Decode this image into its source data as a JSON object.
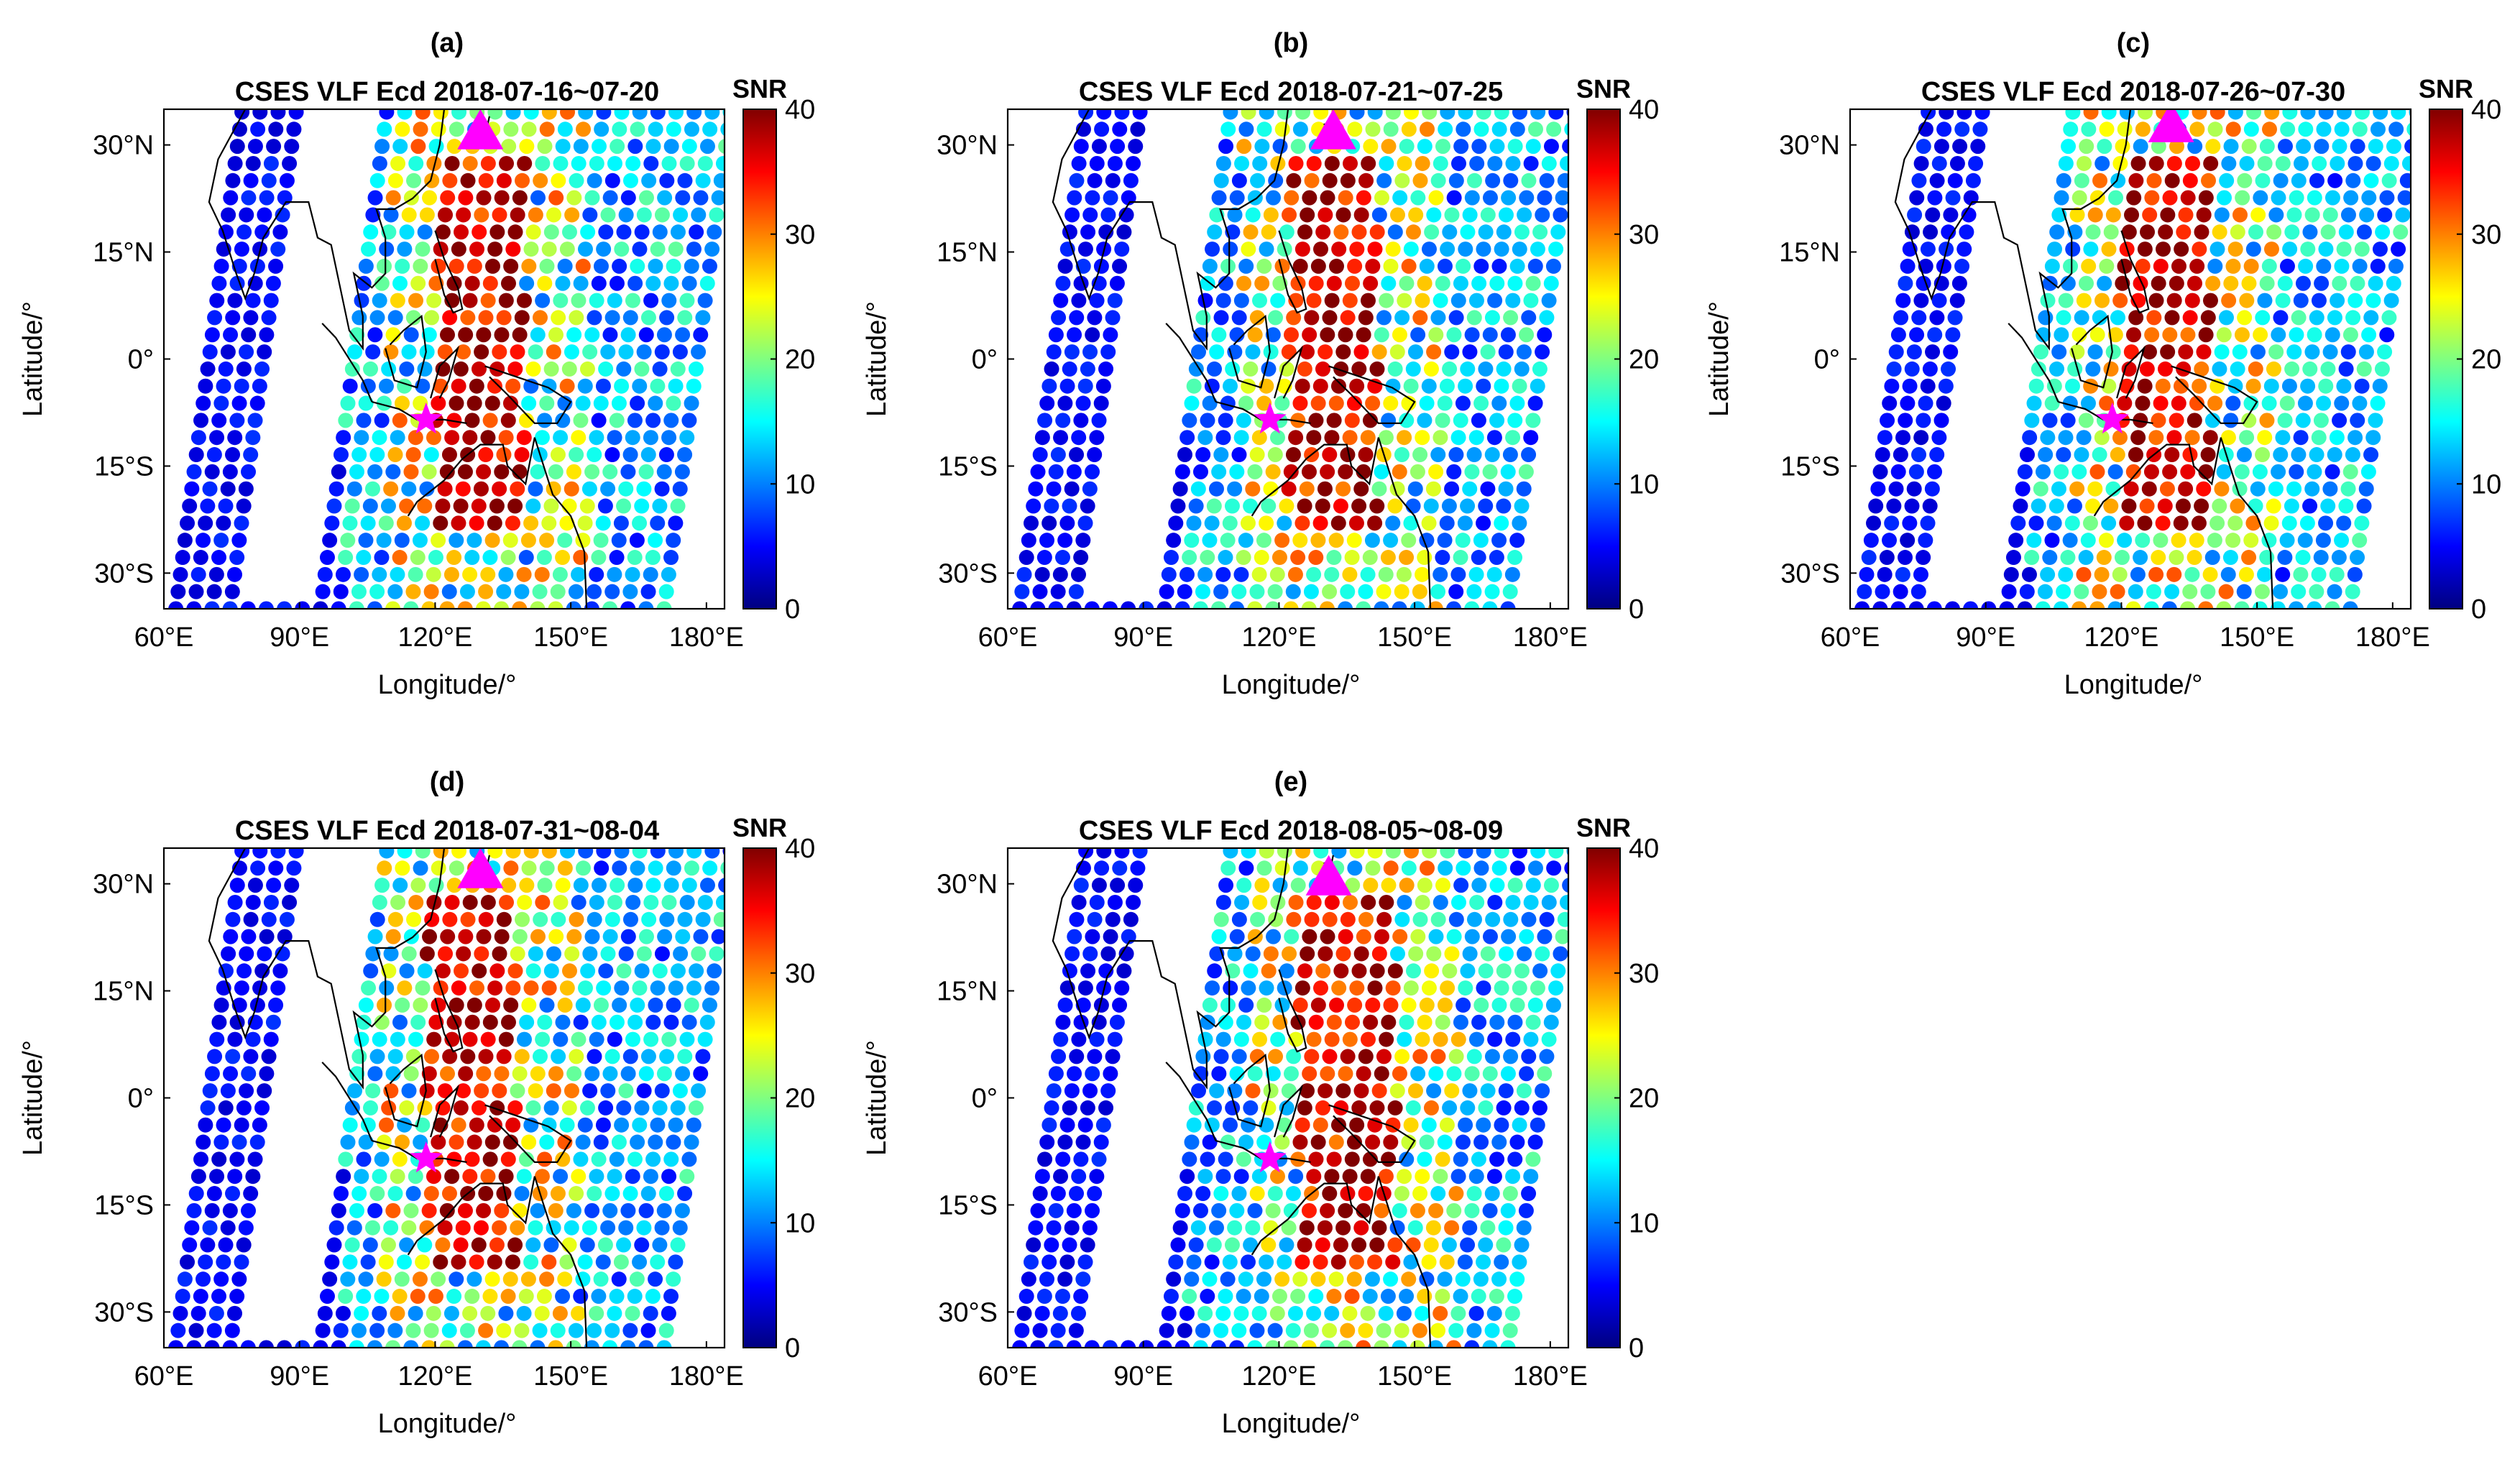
{
  "chart_data": [
    {
      "type": "scatter",
      "panel": "(a)",
      "title": "CSES VLF Ecd 2018-07-16~07-20",
      "xlabel": "Longitude/°",
      "ylabel": "Latitude/°",
      "xlim": [
        60,
        184
      ],
      "ylim": [
        -35,
        35
      ],
      "xticks": [
        "60°E",
        "90°E",
        "120°E",
        "150°E",
        "180°E"
      ],
      "yticks": [
        "30°N",
        "15°N",
        "0°",
        "15°S",
        "30°S"
      ],
      "colorbar": {
        "label": "SNR",
        "range": [
          0,
          40
        ],
        "ticks": [
          "0",
          "10",
          "20",
          "30",
          "40"
        ]
      },
      "markers": [
        {
          "name": "epicenter-star",
          "lon": 118,
          "lat": -8.5
        },
        {
          "name": "triangle",
          "lon": 130,
          "lat": 32
        }
      ],
      "enhanced_region_lon": [
        120,
        140
      ]
    },
    {
      "type": "scatter",
      "panel": "(b)",
      "title": "CSES VLF Ecd 2018-07-21~07-25",
      "xlabel": "Longitude/°",
      "ylabel": "Latitude/°",
      "xlim": [
        60,
        184
      ],
      "ylim": [
        -35,
        35
      ],
      "xticks": [
        "60°E",
        "90°E",
        "120°E",
        "150°E",
        "180°E"
      ],
      "yticks": [
        "30°N",
        "15°N",
        "0°",
        "15°S",
        "30°S"
      ],
      "colorbar": {
        "label": "SNR",
        "range": [
          0,
          40
        ],
        "ticks": [
          "0",
          "10",
          "20",
          "30",
          "40"
        ]
      },
      "markers": [
        {
          "name": "epicenter-star",
          "lon": 118,
          "lat": -8.5
        },
        {
          "name": "triangle",
          "lon": 132,
          "lat": 32
        }
      ],
      "enhanced_region_lon": [
        122,
        142
      ]
    },
    {
      "type": "scatter",
      "panel": "(c)",
      "title": "CSES VLF Ecd 2018-07-26~07-30",
      "xlabel": "Longitude/°",
      "ylabel": "Latitude/°",
      "xlim": [
        60,
        184
      ],
      "ylim": [
        -35,
        35
      ],
      "xticks": [
        "60°E",
        "90°E",
        "120°E",
        "150°E",
        "180°E"
      ],
      "yticks": [
        "30°N",
        "15°N",
        "0°",
        "15°S",
        "30°S"
      ],
      "colorbar": {
        "label": "SNR",
        "range": [
          0,
          40
        ],
        "ticks": [
          "0",
          "10",
          "20",
          "30",
          "40"
        ]
      },
      "markers": [
        {
          "name": "epicenter-star",
          "lon": 118,
          "lat": -8.5
        },
        {
          "name": "triangle",
          "lon": 131,
          "lat": 33
        }
      ],
      "enhanced_region_lon": [
        120,
        140
      ]
    },
    {
      "type": "scatter",
      "panel": "(d)",
      "title": "CSES VLF Ecd 2018-07-31~08-04",
      "xlabel": "Longitude/°",
      "ylabel": "Latitude/°",
      "xlim": [
        60,
        184
      ],
      "ylim": [
        -35,
        35
      ],
      "xticks": [
        "60°E",
        "90°E",
        "120°E",
        "150°E",
        "180°E"
      ],
      "yticks": [
        "30°N",
        "15°N",
        "0°",
        "15°S",
        "30°S"
      ],
      "colorbar": {
        "label": "SNR",
        "range": [
          0,
          40
        ],
        "ticks": [
          "0",
          "10",
          "20",
          "30",
          "40"
        ]
      },
      "markers": [
        {
          "name": "epicenter-star",
          "lon": 118,
          "lat": -8.5
        },
        {
          "name": "triangle",
          "lon": 130,
          "lat": 32
        }
      ],
      "enhanced_region_lon": [
        118,
        138
      ]
    },
    {
      "type": "scatter",
      "panel": "(e)",
      "title": "CSES VLF Ecd 2018-08-05~08-09",
      "xlabel": "Longitude/°",
      "ylabel": "Latitude/°",
      "xlim": [
        60,
        184
      ],
      "ylim": [
        -35,
        35
      ],
      "xticks": [
        "60°E",
        "90°E",
        "120°E",
        "150°E",
        "180°E"
      ],
      "yticks": [
        "30°N",
        "15°N",
        "0°",
        "15°S",
        "30°S"
      ],
      "colorbar": {
        "label": "SNR",
        "range": [
          0,
          40
        ],
        "ticks": [
          "0",
          "10",
          "20",
          "30",
          "40"
        ]
      },
      "markers": [
        {
          "name": "epicenter-star",
          "lon": 118,
          "lat": -8.5
        },
        {
          "name": "triangle",
          "lon": 131,
          "lat": 31
        }
      ],
      "enhanced_region_lon": [
        124,
        146
      ]
    }
  ],
  "colors": {
    "marker_magenta": "#ff00ff",
    "axis": "#000000",
    "coastline": "#000000",
    "colormap": [
      "#00007f",
      "#0000ff",
      "#007fff",
      "#00ffff",
      "#7fff7f",
      "#ffff00",
      "#ff7f00",
      "#ff0000",
      "#7f0000"
    ]
  }
}
